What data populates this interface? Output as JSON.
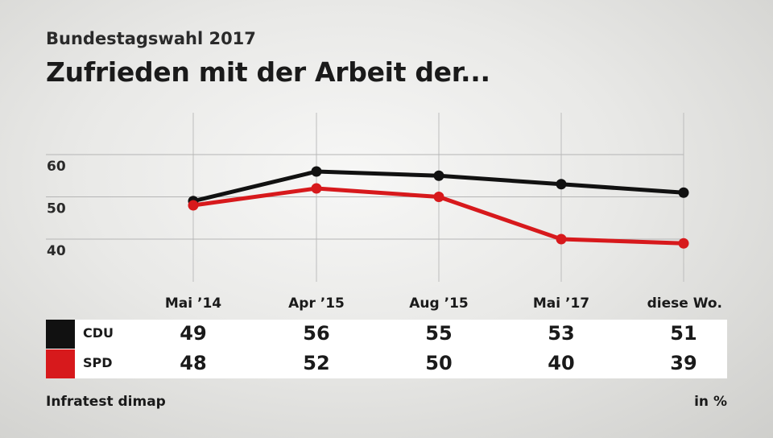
{
  "header": {
    "supertitle": "Bundestagswahl 2017",
    "title": "Zufrieden mit der Arbeit der..."
  },
  "footer": {
    "source": "Infratest dimap",
    "unit": "in %"
  },
  "chart_data": {
    "type": "line",
    "title": "Zufrieden mit der Arbeit der...",
    "categories": [
      "Mai ’14",
      "Apr ’15",
      "Aug ’15",
      "Mai ’17",
      "diese Wo."
    ],
    "yticks": [
      40,
      50,
      60
    ],
    "ylim": [
      30,
      70
    ],
    "grid": true,
    "series": [
      {
        "name": "CDU",
        "color": "#111111",
        "values": [
          49,
          56,
          55,
          53,
          51
        ]
      },
      {
        "name": "SPD",
        "color": "#d7191c",
        "values": [
          48,
          52,
          50,
          40,
          39
        ]
      }
    ]
  }
}
